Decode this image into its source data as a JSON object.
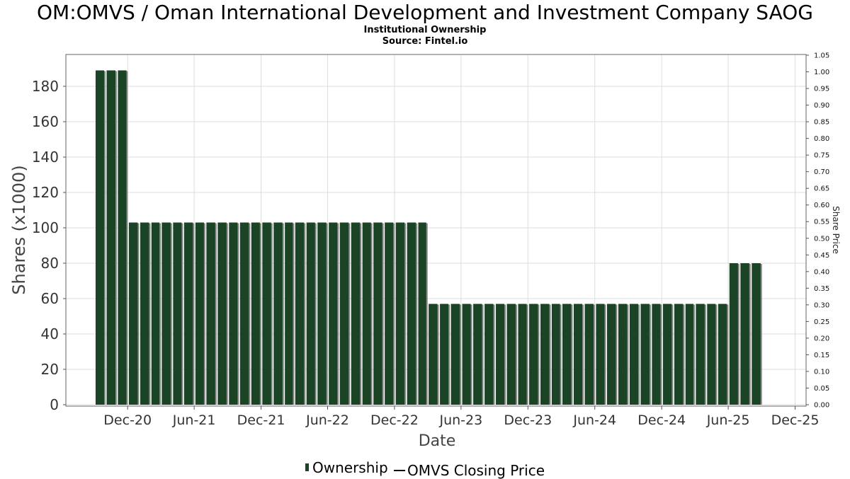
{
  "header": {
    "title": "OM:OMVS / Oman International Development and Investment Company SAOG",
    "subtitle": "Institutional Ownership",
    "source": "Source: Fintel.io"
  },
  "legend": {
    "items": [
      {
        "label": "Ownership",
        "kind": "bar",
        "color": "#1b4326"
      },
      {
        "label": "OMVS Closing Price",
        "kind": "line",
        "color": "#000000"
      }
    ]
  },
  "colors": {
    "bar_fill": "#1b4326",
    "bar_shadow": "#8a8a8a",
    "grid": "#dddddd",
    "axis": "#555555"
  },
  "chart_data": {
    "type": "bar",
    "title": "OM:OMVS / Oman International Development and Investment Company SAOG",
    "subtitle": "Institutional Ownership",
    "xlabel": "Date",
    "ylabel": "Shares (x1000)",
    "y2label": "Share Price",
    "x_ticks": [
      "Dec-20",
      "Jun-21",
      "Dec-21",
      "Jun-22",
      "Dec-22",
      "Jun-23",
      "Dec-23",
      "Jun-24",
      "Dec-24",
      "Jun-25",
      "Dec-25"
    ],
    "x_range": [
      "2020-06-15",
      "2025-12-31"
    ],
    "ylim": [
      0,
      198
    ],
    "y_ticks": [
      0,
      20,
      40,
      60,
      80,
      100,
      120,
      140,
      160,
      180
    ],
    "y2lim": [
      0,
      1.05
    ],
    "y2_ticks": [
      "0.00",
      "0.05",
      "0.10",
      "0.15",
      "0.20",
      "0.25",
      "0.30",
      "0.35",
      "0.40",
      "0.45",
      "0.50",
      "0.55",
      "0.60",
      "0.65",
      "0.70",
      "0.75",
      "0.80",
      "0.85",
      "0.90",
      "0.95",
      "1.00",
      "1.05"
    ],
    "grid": true,
    "legend_position": "bottom",
    "series": [
      {
        "name": "Ownership",
        "points": [
          [
            "2020-09-30",
            189
          ],
          [
            "2020-10-31",
            189
          ],
          [
            "2020-11-30",
            189
          ],
          [
            "2020-12-31",
            103
          ],
          [
            "2021-01-31",
            103
          ],
          [
            "2021-02-28",
            103
          ],
          [
            "2021-03-31",
            103
          ],
          [
            "2021-04-30",
            103
          ],
          [
            "2021-05-31",
            103
          ],
          [
            "2021-06-30",
            103
          ],
          [
            "2021-07-31",
            103
          ],
          [
            "2021-08-31",
            103
          ],
          [
            "2021-09-30",
            103
          ],
          [
            "2021-10-31",
            103
          ],
          [
            "2021-11-30",
            103
          ],
          [
            "2021-12-31",
            103
          ],
          [
            "2022-01-31",
            103
          ],
          [
            "2022-02-28",
            103
          ],
          [
            "2022-03-31",
            103
          ],
          [
            "2022-04-30",
            103
          ],
          [
            "2022-05-31",
            103
          ],
          [
            "2022-06-30",
            103
          ],
          [
            "2022-07-31",
            103
          ],
          [
            "2022-08-31",
            103
          ],
          [
            "2022-09-30",
            103
          ],
          [
            "2022-10-31",
            103
          ],
          [
            "2022-11-30",
            103
          ],
          [
            "2022-12-31",
            103
          ],
          [
            "2023-01-31",
            103
          ],
          [
            "2023-02-28",
            103
          ],
          [
            "2023-03-31",
            57
          ],
          [
            "2023-04-30",
            57
          ],
          [
            "2023-05-31",
            57
          ],
          [
            "2023-06-30",
            57
          ],
          [
            "2023-07-31",
            57
          ],
          [
            "2023-08-31",
            57
          ],
          [
            "2023-09-30",
            57
          ],
          [
            "2023-10-31",
            57
          ],
          [
            "2023-11-30",
            57
          ],
          [
            "2023-12-31",
            57
          ],
          [
            "2024-01-31",
            57
          ],
          [
            "2024-02-29",
            57
          ],
          [
            "2024-03-31",
            57
          ],
          [
            "2024-04-30",
            57
          ],
          [
            "2024-05-31",
            57
          ],
          [
            "2024-06-30",
            57
          ],
          [
            "2024-07-31",
            57
          ],
          [
            "2024-08-31",
            57
          ],
          [
            "2024-09-30",
            57
          ],
          [
            "2024-10-31",
            57
          ],
          [
            "2024-11-30",
            57
          ],
          [
            "2024-12-31",
            57
          ],
          [
            "2025-01-31",
            57
          ],
          [
            "2025-02-28",
            57
          ],
          [
            "2025-03-31",
            57
          ],
          [
            "2025-04-30",
            57
          ],
          [
            "2025-05-31",
            57
          ],
          [
            "2025-06-30",
            80
          ],
          [
            "2025-07-31",
            80
          ],
          [
            "2025-08-31",
            80
          ]
        ]
      }
    ]
  }
}
